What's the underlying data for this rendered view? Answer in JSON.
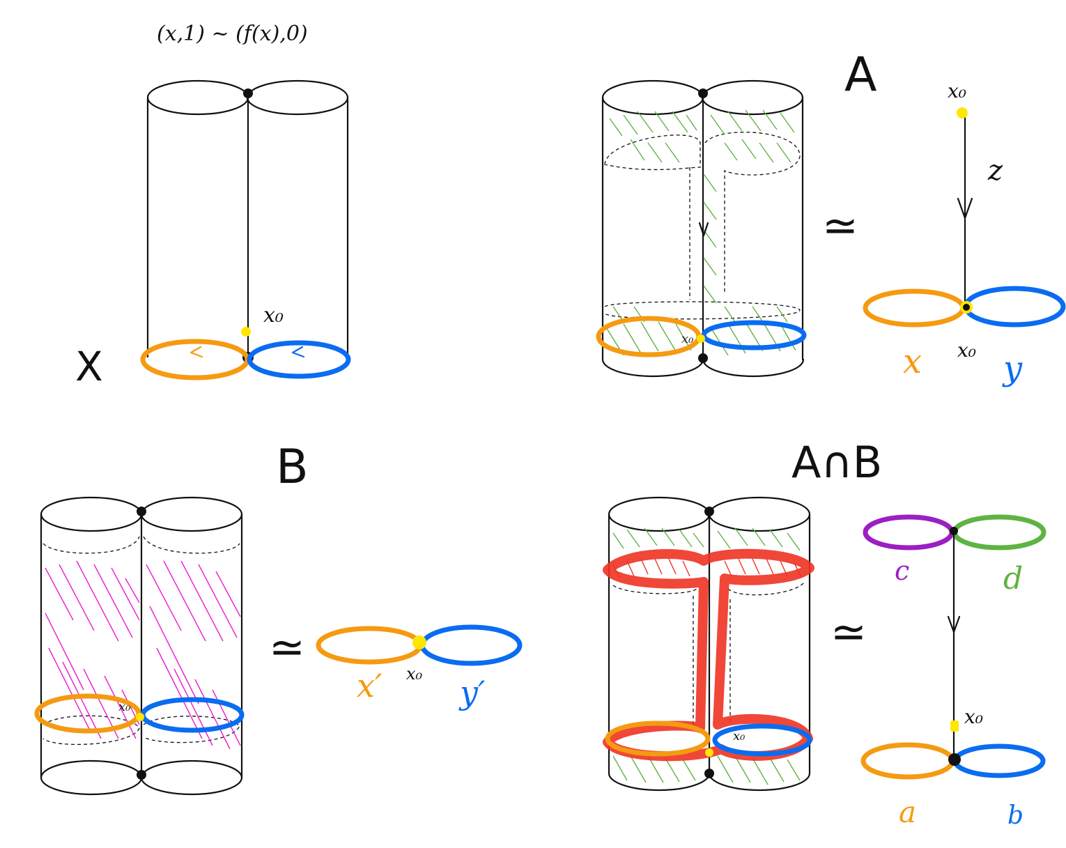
{
  "formula": "(x,1) ~ (f(x),0)",
  "labels": {
    "X": "X",
    "A": "A",
    "B": "B",
    "AcapB": "A∩B",
    "x0": "x₀",
    "htpy_symbol": "≃",
    "z": "z",
    "x": "x",
    "y": "y",
    "xp": "x′",
    "yp": "y′",
    "a": "a",
    "b": "b",
    "c": "c",
    "d": "d"
  },
  "colors": {
    "orange": "#f59a11",
    "blue": "#0a6cf0",
    "purple": "#9b1fc2",
    "green": "#5fb342",
    "magenta": "#ee1bd0",
    "red": "#ee3322",
    "yellow": "#ffe600"
  }
}
